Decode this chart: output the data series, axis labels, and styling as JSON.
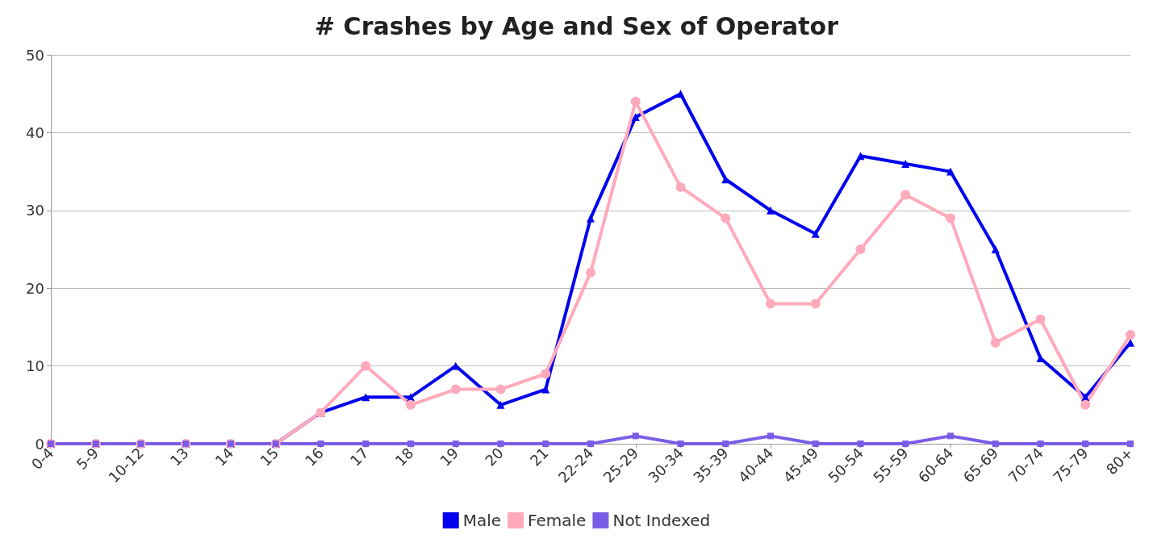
{
  "chart_data": {
    "type": "line",
    "title": "# Crashes by Age and Sex of Operator",
    "categories": [
      "0-4",
      "5-9",
      "10-12",
      "13",
      "14",
      "15",
      "16",
      "17",
      "18",
      "19",
      "20",
      "21",
      "22-24",
      "25-29",
      "30-34",
      "35-39",
      "40-44",
      "45-49",
      "50-54",
      "55-59",
      "60-64",
      "65-69",
      "70-74",
      "75-79",
      "80+"
    ],
    "series": [
      {
        "name": "Male",
        "color": "#0000ee",
        "marker": "triangle",
        "values": [
          0,
          0,
          0,
          0,
          0,
          0,
          4,
          6,
          6,
          10,
          5,
          7,
          29,
          42,
          45,
          34,
          30,
          27,
          37,
          36,
          35,
          25,
          11,
          6,
          13
        ]
      },
      {
        "name": "Female",
        "color": "#ffaabb",
        "marker": "circle",
        "values": [
          0,
          0,
          0,
          0,
          0,
          0,
          4,
          10,
          5,
          7,
          7,
          9,
          22,
          44,
          33,
          29,
          18,
          18,
          25,
          32,
          29,
          13,
          16,
          5,
          14
        ]
      },
      {
        "name": "Not Indexed",
        "color": "#7b5ce6",
        "marker": "square",
        "values": [
          0,
          0,
          0,
          0,
          0,
          0,
          0,
          0,
          0,
          0,
          0,
          0,
          0,
          1,
          0,
          0,
          1,
          0,
          0,
          0,
          1,
          0,
          0,
          0,
          0
        ]
      }
    ],
    "ylim": [
      0,
      50
    ],
    "yticks": [
      0,
      10,
      20,
      30,
      40,
      50
    ],
    "grid": "y",
    "legend": "bottom"
  }
}
